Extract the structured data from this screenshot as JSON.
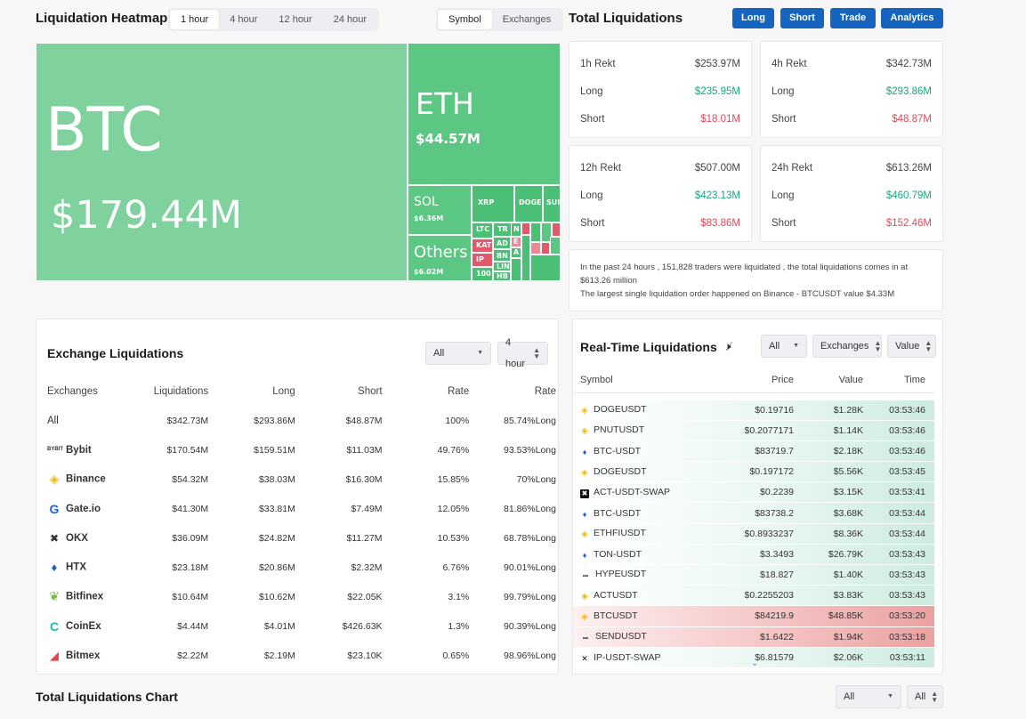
{
  "heatmap": {
    "title": "Liquidation Heatmap",
    "time_tabs": [
      "1 hour",
      "4 hour",
      "12 hour",
      "24 hour"
    ],
    "view_tabs": [
      "Symbol",
      "Exchanges"
    ],
    "tiles": {
      "btc": {
        "symbol": "BTC",
        "value": "$179.44M"
      },
      "eth": {
        "symbol": "ETH",
        "value": "$44.57M"
      },
      "sol": {
        "symbol": "SOL",
        "value": "$6.36M"
      },
      "others": {
        "symbol": "Others",
        "value": "$6.02M"
      },
      "xrp": {
        "symbol": "XRP"
      },
      "doge": {
        "symbol": "DOGE"
      },
      "sui": {
        "symbol": "SUI"
      },
      "ltc": {
        "symbol": "LTC"
      },
      "kat": {
        "symbol": "KAT"
      },
      "ip": {
        "symbol": "IP"
      },
      "s100": {
        "symbol": "100"
      },
      "tr": {
        "symbol": "TR"
      },
      "ad": {
        "symbol": "AD"
      },
      "bn": {
        "symbol": "BN"
      },
      "lin": {
        "symbol": "LIN"
      },
      "hb": {
        "symbol": "HB"
      },
      "n": {
        "symbol": "N"
      },
      "e": {
        "symbol": "E"
      },
      "a": {
        "symbol": "A"
      }
    }
  },
  "total": {
    "title": "Total Liquidations",
    "buttons": [
      "Long",
      "Short",
      "Trade",
      "Analytics"
    ],
    "cards": [
      {
        "label": "1h Rekt",
        "total": "$253.97M",
        "long_label": "Long",
        "long": "$235.95M",
        "short_label": "Short",
        "short": "$18.01M"
      },
      {
        "label": "4h Rekt",
        "total": "$342.73M",
        "long_label": "Long",
        "long": "$293.86M",
        "short_label": "Short",
        "short": "$48.87M"
      },
      {
        "label": "12h Rekt",
        "total": "$507.00M",
        "long_label": "Long",
        "long": "$423.13M",
        "short_label": "Short",
        "short": "$83.86M"
      },
      {
        "label": "24h Rekt",
        "total": "$613.26M",
        "long_label": "Long",
        "long": "$460.79M",
        "short_label": "Short",
        "short": "$152.46M"
      }
    ],
    "summary_line1": "In the past 24 hours , 151,828 traders were liquidated , the total liquidations comes in at $613.26 million",
    "summary_line2": "The largest single liquidation order happened on Binance - BTCUSDT value $4.33M"
  },
  "exchange": {
    "title": "Exchange Liquidations",
    "filter_all": "All",
    "filter_period": "4 hour",
    "headers": [
      "Exchanges",
      "Liquidations",
      "Long",
      "Short",
      "Rate",
      "Rate"
    ],
    "rows": [
      {
        "name": "All",
        "liq": "$342.73M",
        "long": "$293.86M",
        "short": "$48.87M",
        "rate": "100%",
        "long_rate": "85.74%Long"
      },
      {
        "name": "Bybit",
        "liq": "$170.54M",
        "long": "$159.51M",
        "short": "$11.03M",
        "rate": "49.76%",
        "long_rate": "93.53%Long"
      },
      {
        "name": "Binance",
        "liq": "$54.32M",
        "long": "$38.03M",
        "short": "$16.30M",
        "rate": "15.85%",
        "long_rate": "70%Long"
      },
      {
        "name": "Gate.io",
        "liq": "$41.30M",
        "long": "$33.81M",
        "short": "$7.49M",
        "rate": "12.05%",
        "long_rate": "81.86%Long"
      },
      {
        "name": "OKX",
        "liq": "$36.09M",
        "long": "$24.82M",
        "short": "$11.27M",
        "rate": "10.53%",
        "long_rate": "68.78%Long"
      },
      {
        "name": "HTX",
        "liq": "$23.18M",
        "long": "$20.86M",
        "short": "$2.32M",
        "rate": "6.76%",
        "long_rate": "90.01%Long"
      },
      {
        "name": "Bitfinex",
        "liq": "$10.64M",
        "long": "$10.62M",
        "short": "$22.05K",
        "rate": "3.1%",
        "long_rate": "99.79%Long"
      },
      {
        "name": "CoinEx",
        "liq": "$4.44M",
        "long": "$4.01M",
        "short": "$426.63K",
        "rate": "1.3%",
        "long_rate": "90.39%Long"
      },
      {
        "name": "Bitmex",
        "liq": "$2.22M",
        "long": "$2.19M",
        "short": "$23.10K",
        "rate": "0.65%",
        "long_rate": "98.96%Long"
      }
    ]
  },
  "realtime": {
    "title": "Real-Time Liquidations",
    "filter_all": "All",
    "filter_exchanges": "Exchanges",
    "filter_value": "Value",
    "headers": [
      "Symbol",
      "Price",
      "Value",
      "Time"
    ],
    "rows": [
      {
        "symbol": "DOGEUSDT",
        "icon": "binance-icon",
        "price": "$0.19716",
        "value": "$1.28K",
        "time": "03:53:46",
        "side": "long"
      },
      {
        "symbol": "PNUTUSDT",
        "icon": "binance-icon",
        "price": "$0.2077171",
        "value": "$1.14K",
        "time": "03:53:46",
        "side": "long"
      },
      {
        "symbol": "BTC-USDT",
        "icon": "gate-icon",
        "price": "$83719.7",
        "value": "$2.18K",
        "time": "03:53:46",
        "side": "long"
      },
      {
        "symbol": "DOGEUSDT",
        "icon": "binance-icon",
        "price": "$0.197172",
        "value": "$5.56K",
        "time": "03:53:45",
        "side": "long"
      },
      {
        "symbol": "ACT-USDT-SWAP",
        "icon": "okx-icon",
        "price": "$0.2239",
        "value": "$3.15K",
        "time": "03:53:41",
        "side": "long"
      },
      {
        "symbol": "BTC-USDT",
        "icon": "gate-icon",
        "price": "$83738.2",
        "value": "$3.68K",
        "time": "03:53:44",
        "side": "long"
      },
      {
        "symbol": "ETHFIUSDT",
        "icon": "binance-icon",
        "price": "$0.8933237",
        "value": "$8.36K",
        "time": "03:53:44",
        "side": "long"
      },
      {
        "symbol": "TON-USDT",
        "icon": "gate-icon",
        "price": "$3.3493",
        "value": "$26.79K",
        "time": "03:53:43",
        "side": "long"
      },
      {
        "symbol": "HYPEUSDT",
        "icon": "bybit-icon",
        "price": "$18.827",
        "value": "$1.40K",
        "time": "03:53:43",
        "side": "long"
      },
      {
        "symbol": "ACTUSDT",
        "icon": "binance-icon",
        "price": "$0.2255203",
        "value": "$3.83K",
        "time": "03:53:43",
        "side": "long"
      },
      {
        "symbol": "BTCUSDT",
        "icon": "binance-icon",
        "price": "$84219.9",
        "value": "$48.85K",
        "time": "03:53:20",
        "side": "short"
      },
      {
        "symbol": "SENDUSDT",
        "icon": "bybit-icon",
        "price": "$1.6422",
        "value": "$1.94K",
        "time": "03:53:18",
        "side": "short"
      },
      {
        "symbol": "IP-USDT-SWAP",
        "icon": "okx-x-icon",
        "price": "$6.81579",
        "value": "$2.06K",
        "time": "03:53:11",
        "side": "long"
      }
    ]
  },
  "chart_section": {
    "title": "Total Liquidations Chart",
    "filter_all_1": "All",
    "filter_all_2": "All"
  },
  "colors": {
    "accent": "#1565c0",
    "long": "#16a77e",
    "short": "#e04858",
    "heat_green": "#5cc683",
    "heat_red": "#e15a6c"
  }
}
